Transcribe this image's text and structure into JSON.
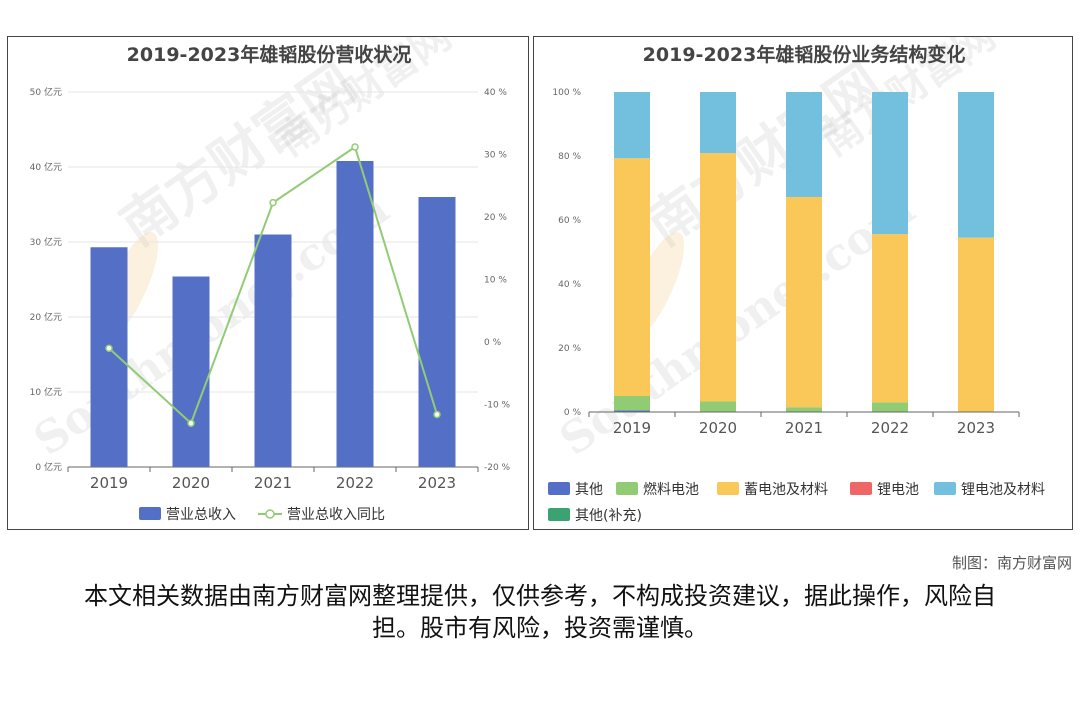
{
  "chart_data": [
    {
      "type": "bar",
      "title": "2019-2023年雄韬股份营收状况",
      "categories": [
        "2019",
        "2020",
        "2021",
        "2022",
        "2023"
      ],
      "y_ticks": [
        "0 亿元",
        "10 亿元",
        "20 亿元",
        "30 亿元",
        "40 亿元",
        "50 亿元"
      ],
      "y2_ticks": [
        "-20 %",
        "-10 %",
        "0 %",
        "10 %",
        "20 %",
        "30 %",
        "40 %"
      ],
      "ylim": [
        0,
        50
      ],
      "y2lim": [
        -20,
        40
      ],
      "series": [
        {
          "name": "营业总收入",
          "type": "bar",
          "axis": "left",
          "color": "#5470c6",
          "values": [
            29.3,
            25.4,
            31.0,
            40.8,
            36.0
          ]
        },
        {
          "name": "营业总收入同比",
          "type": "line",
          "axis": "right",
          "color": "#91cc75",
          "values": [
            -1.0,
            -13.0,
            22.3,
            31.2,
            -11.6
          ]
        }
      ],
      "legend_position": "bottom"
    },
    {
      "type": "bar",
      "stacked": true,
      "title": "2019-2023年雄韬股份业务结构变化",
      "categories": [
        "2019",
        "2020",
        "2021",
        "2022",
        "2023"
      ],
      "y_ticks": [
        "0 %",
        "20 %",
        "40 %",
        "60 %",
        "80 %",
        "100 %"
      ],
      "ylim": [
        0,
        100
      ],
      "series": [
        {
          "name": "其他",
          "color": "#5470c6",
          "values": [
            0.5,
            0,
            0,
            0,
            0
          ]
        },
        {
          "name": "燃料电池",
          "color": "#91cc75",
          "values": [
            4.5,
            3.3,
            1.5,
            3.0,
            0
          ]
        },
        {
          "name": "蓄电池及材料",
          "color": "#fac858",
          "values": [
            74.3,
            77.6,
            65.7,
            52.6,
            54.5
          ]
        },
        {
          "name": "锂电池",
          "color": "#ee6666",
          "values": [
            0,
            0,
            0,
            0,
            0
          ]
        },
        {
          "name": "锂电池及材料",
          "color": "#73c0de",
          "values": [
            20.7,
            19.1,
            32.8,
            44.4,
            45.5
          ]
        },
        {
          "name": "其他(补充)",
          "color": "#3ba272",
          "values": [
            0,
            0,
            0,
            0,
            0
          ]
        }
      ],
      "legend_position": "bottom"
    }
  ],
  "watermark": {
    "brand": "南方财富网",
    "domain": "Southmoney.com"
  },
  "credit": "制图：南方财富网",
  "disclaimer": "本文相关数据由南方财富网整理提供，仅供参考，不构成投资建议，据此操作，风险自担。股市有风险，投资需谨慎。"
}
